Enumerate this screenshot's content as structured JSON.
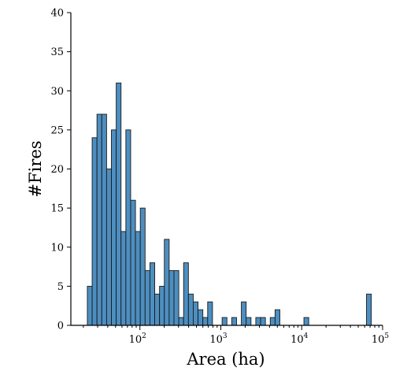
{
  "chart_data": {
    "type": "bar",
    "title": "",
    "xlabel": "Area (ha)",
    "ylabel": "#Fires",
    "x_scale": "log",
    "xlim": [
      14,
      100000
    ],
    "ylim": [
      0,
      40
    ],
    "yticks": [
      0,
      5,
      10,
      15,
      20,
      25,
      30,
      35,
      40
    ],
    "xticks": [
      {
        "base": "10",
        "exp": "2",
        "value": 100
      },
      {
        "base": "10",
        "exp": "3",
        "value": 1000
      },
      {
        "base": "10",
        "exp": "4",
        "value": 10000
      },
      {
        "base": "10",
        "exp": "5",
        "value": 100000
      }
    ],
    "grid": false,
    "legend": "none",
    "color": "#4d8ec0",
    "bins_log10": {
      "start": 1.35,
      "width": 0.0595
    },
    "counts": [
      5,
      24,
      27,
      27,
      20,
      25,
      31,
      12,
      25,
      16,
      12,
      15,
      7,
      8,
      4,
      5,
      11,
      7,
      7,
      1,
      8,
      4,
      3,
      2,
      1,
      3,
      0,
      0,
      1,
      0,
      1,
      0,
      3,
      1,
      0,
      1,
      1,
      0,
      1,
      2,
      0,
      0,
      0,
      0,
      0,
      1,
      0,
      0,
      0,
      0,
      0,
      0,
      0,
      0,
      0,
      0,
      0,
      0,
      4
    ]
  }
}
